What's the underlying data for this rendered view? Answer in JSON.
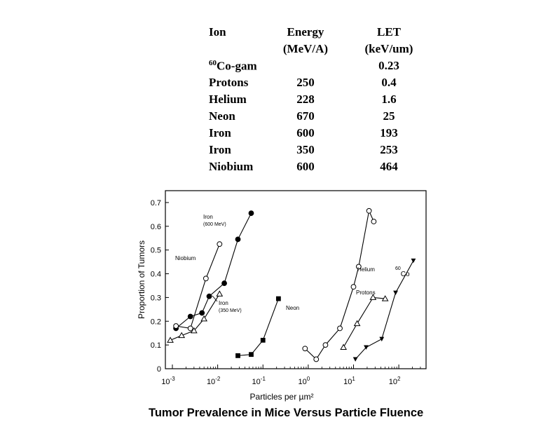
{
  "table": {
    "headers": {
      "ion": "Ion",
      "energy": "Energy",
      "energy_unit": "(MeV/A)",
      "let": "LET",
      "let_unit": "(keV/um)"
    },
    "rows": [
      {
        "ion_sup": "60",
        "ion": "Co-gam",
        "energy": "",
        "let": "0.23"
      },
      {
        "ion_sup": "",
        "ion": "Protons",
        "energy": "250",
        "let": "0.4"
      },
      {
        "ion_sup": "",
        "ion": "Helium",
        "energy": "228",
        "let": "1.6"
      },
      {
        "ion_sup": "",
        "ion": "Neon",
        "energy": "670",
        "let": "25"
      },
      {
        "ion_sup": "",
        "ion": "Iron",
        "energy": "600",
        "let": "193"
      },
      {
        "ion_sup": "",
        "ion": "Iron",
        "energy": "350",
        "let": "253"
      },
      {
        "ion_sup": "",
        "ion": "Niobium",
        "energy": "600",
        "let": "464"
      }
    ]
  },
  "caption": "Tumor Prevalence in Mice Versus Particle Fluence",
  "chart_data": {
    "type": "scatter",
    "xlabel": "Particles per µm²",
    "ylabel": "Proportion of Tumors",
    "xscale": "log",
    "xlim": [
      0.0007,
      400
    ],
    "ylim": [
      0,
      0.75
    ],
    "x_ticks": [
      {
        "value": 0.001,
        "base": "10",
        "exp": "-3"
      },
      {
        "value": 0.01,
        "base": "10",
        "exp": "-2"
      },
      {
        "value": 0.1,
        "base": "10",
        "exp": "-1"
      },
      {
        "value": 1,
        "base": "10",
        "exp": "0"
      },
      {
        "value": 10,
        "base": "10",
        "exp": "1"
      },
      {
        "value": 100,
        "base": "10",
        "exp": "2"
      }
    ],
    "y_ticks": [
      {
        "value": 0,
        "label": "0"
      },
      {
        "value": 0.1,
        "label": "0.1"
      },
      {
        "value": 0.2,
        "label": "0.2"
      },
      {
        "value": 0.3,
        "label": "0.3"
      },
      {
        "value": 0.4,
        "label": "0.4"
      },
      {
        "value": 0.5,
        "label": "0.5"
      },
      {
        "value": 0.6,
        "label": "0.6"
      },
      {
        "value": 0.7,
        "label": "0.7"
      }
    ],
    "series": [
      {
        "name": "Iron (600 MeV)",
        "marker": "filled-circle",
        "x": [
          0.0012,
          0.0025,
          0.0045,
          0.0065,
          0.014,
          0.028,
          0.055
        ],
        "y": [
          0.17,
          0.22,
          0.235,
          0.305,
          0.36,
          0.545,
          0.655
        ]
      },
      {
        "name": "Niobium",
        "marker": "open-circle",
        "x": [
          0.0012,
          0.0025,
          0.0055,
          0.011
        ],
        "y": [
          0.18,
          0.17,
          0.38,
          0.525
        ]
      },
      {
        "name": "Iron (350 MeV)",
        "marker": "open-triangle",
        "x": [
          0.0009,
          0.0016,
          0.003,
          0.005,
          0.011
        ],
        "y": [
          0.12,
          0.14,
          0.16,
          0.21,
          0.315
        ]
      },
      {
        "name": "Neon",
        "marker": "filled-square",
        "x": [
          0.028,
          0.055,
          0.1,
          0.22
        ],
        "y": [
          0.055,
          0.06,
          0.12,
          0.295
        ]
      },
      {
        "name": "Helium",
        "marker": "open-circle",
        "x": [
          0.85,
          1.5,
          2.4,
          5,
          10,
          13,
          22,
          28
        ],
        "y": [
          0.085,
          0.04,
          0.1,
          0.17,
          0.345,
          0.43,
          0.665,
          0.62
        ]
      },
      {
        "name": "Protons",
        "marker": "open-triangle",
        "x": [
          6,
          12,
          27,
          50
        ],
        "y": [
          0.09,
          0.19,
          0.3,
          0.295
        ]
      },
      {
        "name": "60Co",
        "marker": "filled-triangle-down",
        "x": [
          11,
          19,
          42,
          85,
          210
        ],
        "y": [
          0.04,
          0.09,
          0.125,
          0.32,
          0.455
        ]
      }
    ],
    "annotations": [
      {
        "text": "Iron",
        "text2": "(600 MeV)"
      },
      {
        "text": "Niobium"
      },
      {
        "text": "Iron",
        "text2": "(350 MeV)"
      },
      {
        "text": "Neon"
      },
      {
        "text": "Helium"
      },
      {
        "text": "Protons"
      },
      {
        "text_sup": "60",
        "text": "Co"
      }
    ]
  }
}
